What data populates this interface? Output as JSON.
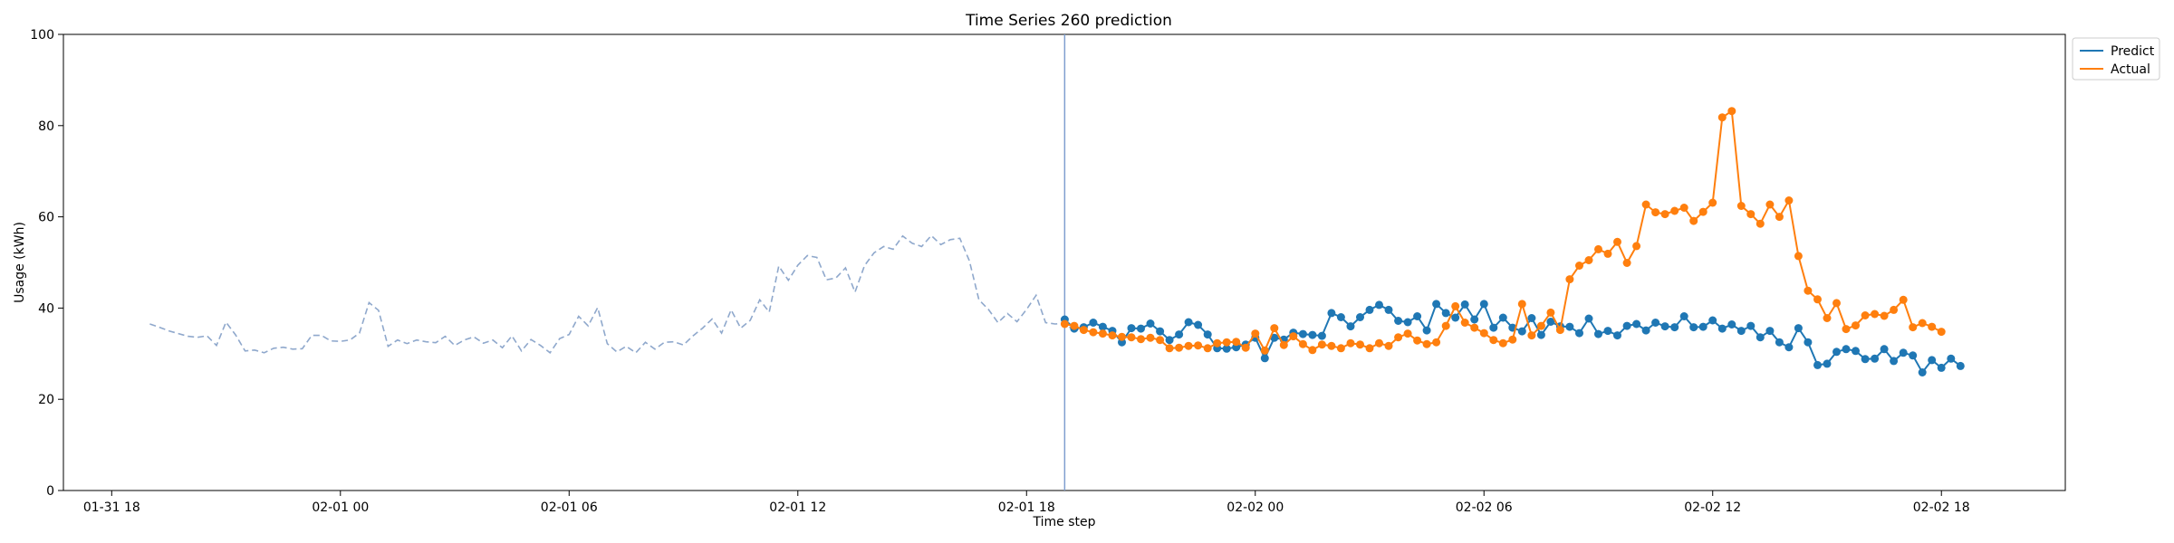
{
  "chart_data": {
    "type": "line",
    "title": "Time Series 260 prediction",
    "xlabel": "Time step",
    "ylabel": "Usage (kWh)",
    "ylim": [
      0,
      100
    ],
    "xlim": [
      "01-31 16:44",
      "02-02 21:15"
    ],
    "x_ticks": [
      {
        "value": "01-31 18:00",
        "label": "01-31 18"
      },
      {
        "value": "02-01 00:00",
        "label": "02-01 00"
      },
      {
        "value": "02-01 06:00",
        "label": "02-01 06"
      },
      {
        "value": "02-01 12:00",
        "label": "02-01 12"
      },
      {
        "value": "02-01 18:00",
        "label": "02-01 18"
      },
      {
        "value": "02-02 00:00",
        "label": "02-02 00"
      },
      {
        "value": "02-02 06:00",
        "label": "02-02 06"
      },
      {
        "value": "02-02 12:00",
        "label": "02-02 12"
      },
      {
        "value": "02-02 18:00",
        "label": "02-02 18"
      }
    ],
    "y_ticks": [
      0,
      20,
      40,
      60,
      80,
      100
    ],
    "grid": false,
    "legend_position": "outside top-right",
    "prediction_start": "02-01 19:00",
    "series": [
      {
        "key": "history",
        "style": "dashed",
        "color": "#8fa8cc",
        "start": "01-31 19:00",
        "step_minutes": 15,
        "values": [
          36.5,
          35.8,
          35.0,
          34.4,
          33.8,
          33.6,
          33.9,
          31.8,
          36.9,
          34.1,
          30.6,
          30.8,
          30.2,
          31.2,
          31.4,
          31.0,
          31.1,
          34.0,
          34.0,
          32.8,
          32.7,
          33.0,
          34.5,
          41.2,
          39.5,
          31.6,
          33.0,
          32.2,
          33.0,
          32.6,
          32.4,
          33.8,
          31.8,
          33.0,
          33.7,
          32.3,
          33.0,
          31.3,
          33.9,
          30.6,
          33.1,
          31.8,
          30.2,
          33.3,
          34.2,
          38.2,
          36.1,
          40.1,
          32.2,
          30.4,
          31.6,
          30.2,
          32.5,
          31.0,
          32.5,
          32.6,
          31.9,
          33.9,
          35.6,
          37.6,
          34.5,
          39.6,
          35.6,
          37.3,
          41.8,
          39.1,
          49.2,
          46.1,
          49.4,
          51.5,
          51.1,
          46.2,
          46.6,
          48.8,
          43.5,
          49.3,
          52.1,
          53.5,
          52.9,
          55.8,
          54.2,
          53.5,
          55.9,
          53.9,
          55.0,
          55.3,
          50.4,
          41.8,
          39.7,
          36.8,
          38.8,
          37.0,
          39.7,
          42.8,
          36.8,
          36.5,
          36.7,
          35.0,
          36.0
        ]
      },
      {
        "name": "Predict",
        "style": "solid-markers",
        "color": "#1f77b4",
        "start": "02-01 19:00",
        "step_minutes": 15,
        "values": [
          37.5,
          35.5,
          35.8,
          36.8,
          35.9,
          35.0,
          32.5,
          35.6,
          35.5,
          36.6,
          34.9,
          33.0,
          34.2,
          36.9,
          36.3,
          34.2,
          31.2,
          31.1,
          31.4,
          32.0,
          33.5,
          29.0,
          33.5,
          33.1,
          34.6,
          34.3,
          34.1,
          33.9,
          38.9,
          38.0,
          36.0,
          38.0,
          39.6,
          40.7,
          39.6,
          37.2,
          36.9,
          38.2,
          35.1,
          40.9,
          38.9,
          37.9,
          40.8,
          37.5,
          40.9,
          35.7,
          37.9,
          35.7,
          34.9,
          37.8,
          34.1,
          37.0,
          36.0,
          35.9,
          34.5,
          37.7,
          34.3,
          35.0,
          34.0,
          36.1,
          36.5,
          35.1,
          36.8,
          36.0,
          35.8,
          38.2,
          35.8,
          35.9,
          37.3,
          35.5,
          36.4,
          35.0,
          36.1,
          33.6,
          35.0,
          32.5,
          31.4,
          35.6,
          32.5,
          27.5,
          27.8,
          30.4,
          31.0,
          30.6,
          28.8,
          28.9,
          31.0,
          28.4,
          30.2,
          29.6,
          25.9,
          28.6,
          26.9,
          28.9,
          27.3
        ]
      },
      {
        "name": "Actual",
        "style": "solid-markers",
        "color": "#ff7f0e",
        "start": "02-01 19:00",
        "step_minutes": 15,
        "values": [
          36.5,
          36.1,
          35.2,
          34.7,
          34.4,
          34.0,
          33.7,
          33.6,
          33.2,
          33.5,
          33.0,
          31.2,
          31.3,
          31.7,
          31.8,
          31.2,
          32.3,
          32.5,
          32.6,
          31.3,
          34.4,
          30.7,
          35.6,
          31.9,
          33.8,
          32.1,
          30.8,
          32.0,
          31.7,
          31.2,
          32.3,
          32.0,
          31.2,
          32.3,
          31.7,
          33.6,
          34.4,
          32.9,
          32.1,
          32.5,
          36.1,
          40.4,
          36.8,
          35.7,
          34.5,
          33.0,
          32.3,
          33.1,
          40.9,
          34.0,
          36.1,
          39.0,
          35.2,
          46.3,
          49.3,
          50.5,
          52.9,
          51.9,
          54.5,
          49.9,
          53.6,
          62.7,
          61.0,
          60.6,
          61.3,
          62.0,
          59.1,
          61.1,
          63.1,
          81.8,
          83.2,
          62.4,
          60.6,
          58.5,
          62.7,
          60.0,
          63.6,
          51.4,
          43.8,
          41.9,
          37.8,
          41.1,
          35.4,
          36.2,
          38.4,
          38.7,
          38.3,
          39.6,
          41.8,
          35.8,
          36.7,
          35.9,
          34.8
        ]
      }
    ]
  },
  "legend": {
    "items": [
      {
        "label": "Predict",
        "color": "#1f77b4"
      },
      {
        "label": "Actual",
        "color": "#ff7f0e"
      }
    ]
  }
}
